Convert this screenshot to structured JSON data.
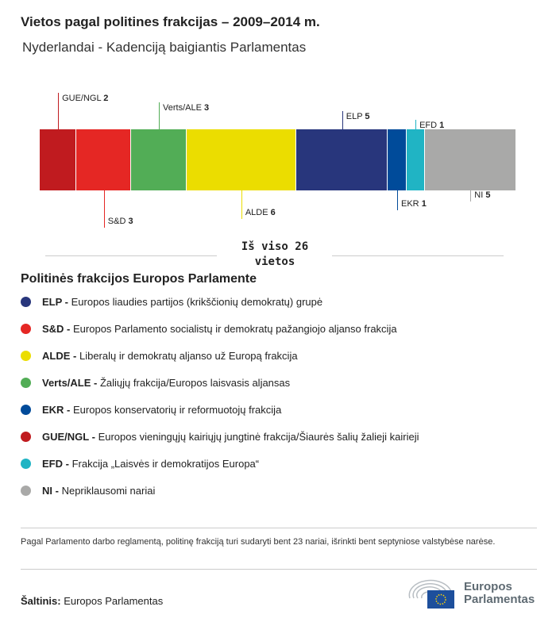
{
  "header": {
    "title": "Vietos pagal politines frakcijas – 2009–2014 m.",
    "subtitle": "Nyderlandai - Kadenciją baigiantis Parlamentas"
  },
  "chart_data": {
    "type": "bar",
    "orientation": "stacked-horizontal",
    "total": 26,
    "categories": [
      "GUE/NGL",
      "S&D",
      "Verts/ALE",
      "ALDE",
      "ELP",
      "EKR",
      "EFD",
      "NI"
    ],
    "values": [
      2,
      3,
      3,
      6,
      5,
      1,
      1,
      5
    ],
    "colors": [
      "#c01b1f",
      "#e52724",
      "#52ad56",
      "#ebdd00",
      "#28367c",
      "#004b9a",
      "#20b4c4",
      "#a9a9a8"
    ],
    "label_side": [
      "top",
      "bottom",
      "top",
      "bottom",
      "top",
      "bottom",
      "top",
      "bottom"
    ],
    "total_label_line1": "Iš viso 26",
    "total_label_line2": "vietos"
  },
  "legend": {
    "title": "Politinės frakcijos Europos Parlamente",
    "items": [
      {
        "abbr": "ELP -",
        "text": "Europos liaudies partijos (krikščionių demokratų) grupė",
        "color": "#28367c"
      },
      {
        "abbr": "S&D -",
        "text": "Europos Parlamento socialistų ir demokratų pažangiojo aljanso frakcija",
        "color": "#e52724"
      },
      {
        "abbr": "ALDE -",
        "text": "Liberalų ir demokratų aljanso už Europą frakcija",
        "color": "#ebdd00"
      },
      {
        "abbr": "Verts/ALE -",
        "text": "Žaliųjų frakcija/Europos laisvasis aljansas",
        "color": "#52ad56"
      },
      {
        "abbr": "EKR -",
        "text": "Europos konservatorių ir reformuotojų frakcija",
        "color": "#004b9a"
      },
      {
        "abbr": "GUE/NGL -",
        "text": "Europos vieningųjų kairiųjų jungtinė frakcija/Šiaurės šalių žalieji kairieji",
        "color": "#c01b1f"
      },
      {
        "abbr": "EFD -",
        "text": "Frakcija „Laisvės ir demokratijos Europa“",
        "color": "#20b4c4"
      },
      {
        "abbr": "NI -",
        "text": "Nepriklausomi nariai",
        "color": "#a9a9a8"
      }
    ]
  },
  "footer": {
    "note": "Pagal Parlamento darbo reglamentą, politinę frakciją turi sudaryti bent 23 nariai, išrinkti bent septyniose valstybėse narėse.",
    "source_label": "Šaltinis:",
    "source": "Europos Parlamentas",
    "logo_line1": "Europos",
    "logo_line2": "Parlamentas"
  }
}
